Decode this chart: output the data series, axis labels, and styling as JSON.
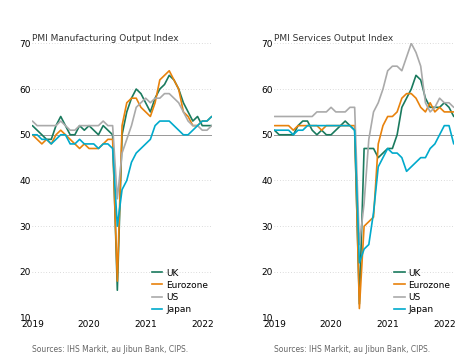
{
  "title_left": "PMI Manufacturing Output Index",
  "title_right": "PMI Services Output Index",
  "source": "Sources: IHS Markit, au Jibun Bank, CIPS.",
  "ylim": [
    10,
    70
  ],
  "yticks": [
    10,
    20,
    30,
    40,
    50,
    60,
    70
  ],
  "colors": {
    "UK": "#1a7a5e",
    "Eurozone": "#e8820c",
    "US": "#aaaaaa",
    "Japan": "#00aacc"
  },
  "line_width": 1.2,
  "hline_y": 50,
  "hline_color": "#999999",
  "hline_lw": 0.7,
  "bg_color": "#ffffff",
  "grid_color": "#bbbbbb",
  "mfg": {
    "UK": [
      52,
      51,
      50,
      49,
      49,
      52,
      54,
      52,
      50,
      50,
      52,
      51,
      52,
      51,
      50,
      52,
      51,
      50,
      16,
      50,
      55,
      58,
      60,
      59,
      57,
      55,
      58,
      60,
      61,
      63,
      62,
      60,
      57,
      55,
      53,
      54,
      52,
      52,
      52
    ],
    "Eurozone": [
      50,
      49,
      48,
      49,
      48,
      50,
      51,
      50,
      49,
      48,
      47,
      48,
      47,
      47,
      47,
      48,
      49,
      49,
      18,
      52,
      57,
      58,
      58,
      56,
      55,
      54,
      57,
      62,
      63,
      64,
      62,
      60,
      55,
      54,
      52,
      52,
      53,
      53,
      54
    ],
    "US": [
      53,
      52,
      52,
      52,
      52,
      52,
      53,
      52,
      51,
      51,
      52,
      52,
      52,
      52,
      52,
      53,
      52,
      52,
      36,
      46,
      49,
      52,
      56,
      57,
      58,
      57,
      58,
      58,
      59,
      59,
      58,
      57,
      55,
      53,
      52,
      52,
      51,
      51,
      52
    ],
    "Japan": [
      50,
      50,
      49,
      49,
      48,
      49,
      50,
      50,
      48,
      48,
      49,
      48,
      48,
      48,
      47,
      48,
      48,
      47,
      30,
      38,
      40,
      44,
      46,
      47,
      48,
      49,
      52,
      53,
      53,
      53,
      52,
      51,
      50,
      50,
      51,
      52,
      53,
      53,
      54
    ]
  },
  "svc": {
    "UK": [
      51,
      50,
      50,
      50,
      50,
      52,
      53,
      53,
      51,
      50,
      51,
      50,
      50,
      51,
      52,
      53,
      52,
      51,
      13,
      47,
      47,
      47,
      45,
      46,
      47,
      47,
      50,
      56,
      58,
      60,
      63,
      62,
      58,
      56,
      56,
      56,
      57,
      56,
      54
    ],
    "Eurozone": [
      52,
      52,
      52,
      52,
      51,
      52,
      52,
      52,
      52,
      52,
      51,
      52,
      52,
      52,
      52,
      52,
      52,
      52,
      12,
      30,
      31,
      32,
      48,
      52,
      54,
      54,
      55,
      58,
      59,
      59,
      58,
      56,
      55,
      57,
      55,
      56,
      55,
      55,
      55
    ],
    "US": [
      54,
      54,
      54,
      54,
      54,
      54,
      54,
      54,
      54,
      55,
      55,
      55,
      56,
      55,
      55,
      55,
      56,
      56,
      26,
      35,
      49,
      55,
      57,
      60,
      64,
      65,
      65,
      64,
      67,
      70,
      68,
      65,
      57,
      55,
      56,
      58,
      57,
      57,
      56
    ],
    "Japan": [
      51,
      51,
      51,
      51,
      50,
      51,
      51,
      52,
      52,
      52,
      52,
      52,
      52,
      52,
      52,
      52,
      52,
      51,
      22,
      25,
      26,
      33,
      43,
      45,
      47,
      46,
      46,
      45,
      42,
      43,
      44,
      45,
      45,
      47,
      48,
      50,
      52,
      52,
      48
    ]
  },
  "n_points": 39,
  "xtick_positions": [
    0,
    12,
    24,
    36
  ],
  "xtick_labels": [
    "2019",
    "2020",
    "2021",
    "2022"
  ],
  "title_fontsize": 6.5,
  "tick_fontsize": 6.5,
  "legend_fontsize": 6.5,
  "source_fontsize": 5.5
}
